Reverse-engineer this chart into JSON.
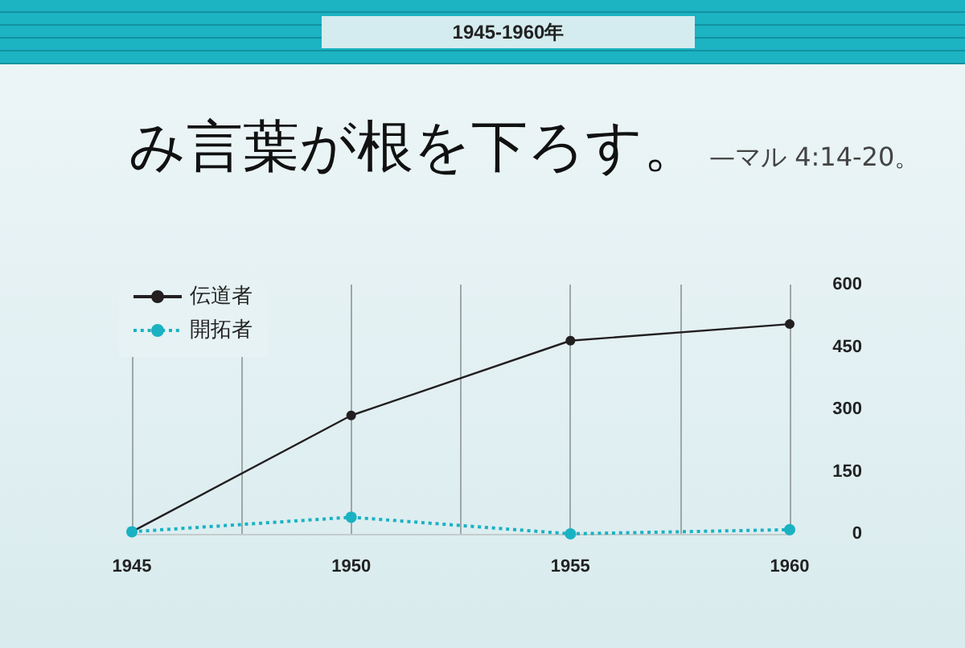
{
  "chart_data": {
    "type": "line",
    "title": "み言葉が根を下ろす。",
    "subtitle": "—マル 4:14-20。",
    "annotations": [
      "1945-1960年"
    ],
    "x": [
      1945,
      1950,
      1955,
      1960
    ],
    "xlim": [
      1945,
      1960
    ],
    "xticks": [
      1945,
      {
        "value": 1947.5,
        "label": null
      },
      1950,
      {
        "value": 1952.5,
        "label": null
      },
      1955,
      {
        "value": 1957.5,
        "label": null
      },
      1960
    ],
    "ylim": [
      0,
      600
    ],
    "yticks": [
      0,
      150,
      300,
      450,
      600
    ],
    "series": [
      {
        "name": "伝道者",
        "color": "#231f20",
        "values": [
          5,
          285,
          465,
          505
        ],
        "line_style": "solid"
      },
      {
        "name": "開拓者",
        "color": "#1ab2c2",
        "values": [
          5,
          40,
          0,
          10
        ],
        "line_style": "dotted"
      }
    ],
    "grid": "x",
    "legend": "top left",
    "marker": "circle"
  }
}
